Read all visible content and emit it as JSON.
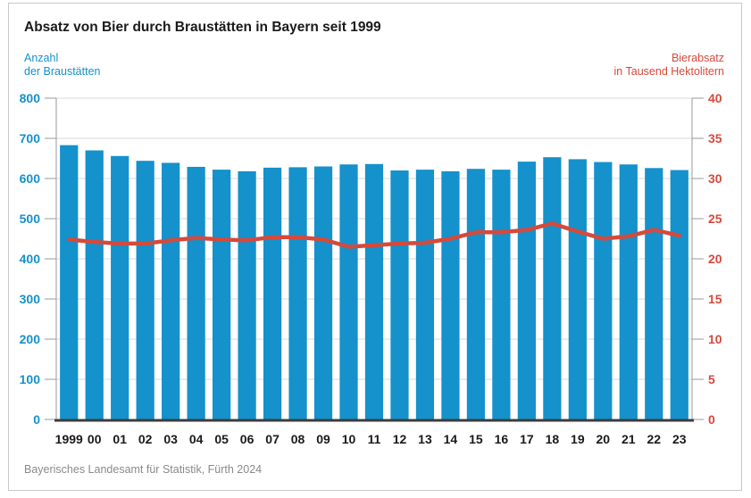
{
  "title": "Absatz von Bier durch Braustätten in Bayern seit 1999",
  "footer": "Bayerisches Landesamt für Statistik, Fürth 2024",
  "left_axis": {
    "title_lines": [
      "Anzahl",
      "der Braustätten"
    ],
    "color": "#1591cb",
    "tick_labels": [
      "0",
      "100",
      "200",
      "300",
      "400",
      "500",
      "600",
      "700",
      "800"
    ]
  },
  "right_axis": {
    "title_lines": [
      "Bierabsatz",
      "in Tausend Hektolitern"
    ],
    "color": "#d6493b",
    "tick_labels": [
      "0",
      "5",
      "10",
      "15",
      "20",
      "25",
      "30",
      "35",
      "40"
    ]
  },
  "chart_data": {
    "type": "bar",
    "title": "Absatz von Bier durch Braustätten in Bayern seit 1999",
    "categories": [
      "1999",
      "00",
      "01",
      "02",
      "03",
      "04",
      "05",
      "06",
      "07",
      "08",
      "09",
      "10",
      "11",
      "12",
      "13",
      "14",
      "15",
      "16",
      "17",
      "18",
      "19",
      "20",
      "21",
      "22",
      "23"
    ],
    "series": [
      {
        "name": "Anzahl der Braustätten",
        "type": "bar",
        "axis": "left",
        "color": "#1591cb",
        "values": [
          683,
          670,
          656,
          644,
          639,
          629,
          622,
          618,
          627,
          628,
          630,
          635,
          636,
          620,
          622,
          618,
          624,
          622,
          642,
          653,
          648,
          641,
          635,
          626,
          621
        ]
      },
      {
        "name": "Bierabsatz in Tausend Hektolitern",
        "type": "line",
        "axis": "right",
        "color": "#d6493b",
        "values": [
          22.4,
          22.1,
          21.9,
          21.9,
          22.3,
          22.6,
          22.4,
          22.3,
          22.7,
          22.7,
          22.4,
          21.5,
          21.7,
          21.9,
          22.0,
          22.5,
          23.3,
          23.3,
          23.6,
          24.4,
          23.4,
          22.5,
          22.8,
          23.6,
          22.9
        ]
      }
    ],
    "ylim_left": [
      0,
      800
    ],
    "ylim_right": [
      0,
      40
    ],
    "left_tick_step": 100,
    "right_tick_step": 5,
    "grid": true,
    "legend_position": "none"
  },
  "colors": {
    "bar_blue": "#1591cb",
    "line_red": "#d6493b",
    "grid_gray": "#d8d8d8",
    "axis_line_gray": "#9a9a9a",
    "baseline_dark": "#3c3c3c",
    "xlabel_dark": "#1a1a1a",
    "footer_gray": "#8a8a8a",
    "border_gray": "#c9c9c9"
  }
}
